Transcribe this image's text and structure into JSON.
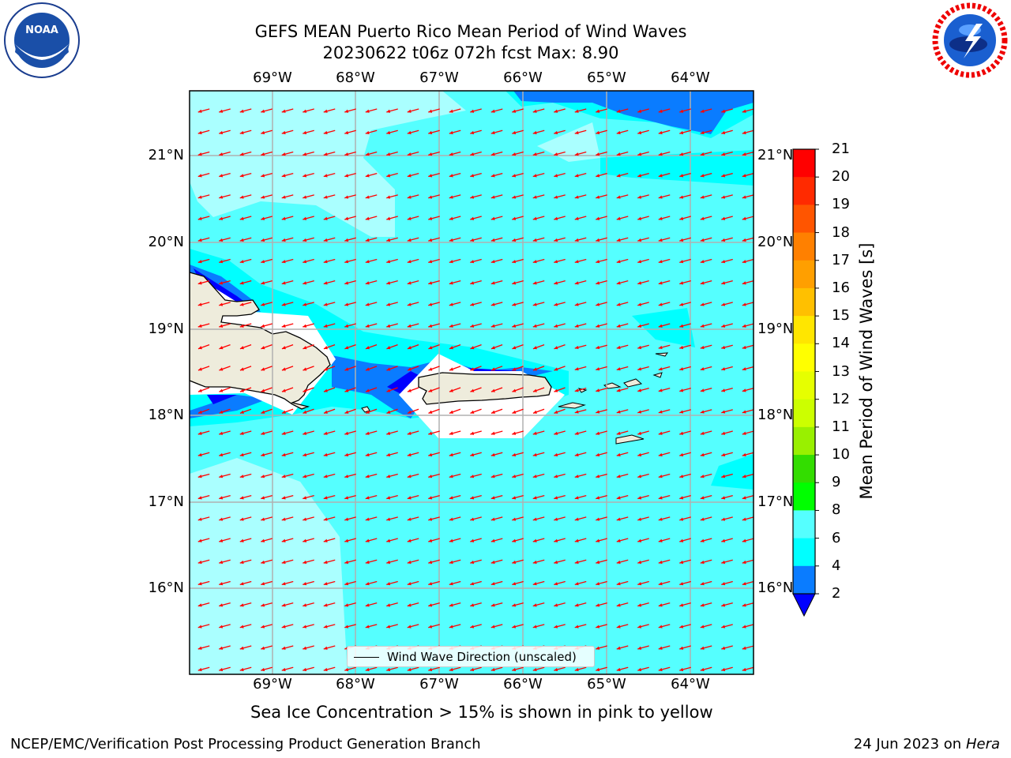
{
  "title": {
    "line1": "GEFS MEAN Puerto Rico Mean Period of Wind Waves",
    "line2": "20230622 t06z 072h fcst   Max: 8.90"
  },
  "axes": {
    "x_ticks": [
      "69°W",
      "68°W",
      "67°W",
      "66°W",
      "65°W",
      "64°W"
    ],
    "y_ticks": [
      "21°N",
      "20°N",
      "19°N",
      "18°N",
      "17°N",
      "16°N"
    ]
  },
  "colorbar": {
    "label": "Mean Period of Wind Waves [s]",
    "ticks": [
      "21",
      "20",
      "19",
      "18",
      "17",
      "16",
      "15",
      "14",
      "13",
      "12",
      "11",
      "10",
      "9",
      "8",
      "6",
      "4",
      "2"
    ],
    "colors": [
      "#ff0000",
      "#ff2a00",
      "#ff5500",
      "#ff8000",
      "#ff9f00",
      "#ffc000",
      "#ffe600",
      "#ffff00",
      "#e6ff00",
      "#ccff00",
      "#99f000",
      "#33dd00",
      "#00ff00",
      "#4cf07a",
      "#aaffff",
      "#55ffff",
      "#00ffff",
      "#0a7cff",
      "#0000ff"
    ]
  },
  "legend": {
    "label": "Wind Wave Direction (unscaled)"
  },
  "note": "Sea Ice Concentration > 15% is shown in pink to yellow",
  "footer": {
    "left": "NCEP/EMC/Verification Post Processing Product Generation Branch",
    "date": "24 Jun 2023 on",
    "machine": "Hera"
  },
  "logos": {
    "noaa_text": "NOAA",
    "nws_text": "NATIONAL WEATHER SERVICE"
  },
  "map_colors": {
    "land": "#eeecdc",
    "ocean_period_6_8": "#55ffff",
    "ocean_period_8_9": "#aaffff",
    "ocean_period_4_6": "#00ffff",
    "ocean_period_2_4": "#0a7cff",
    "ocean_period_lt2": "#0000ff",
    "arrows": "#ff0000",
    "grid": "#b0b0b0"
  }
}
